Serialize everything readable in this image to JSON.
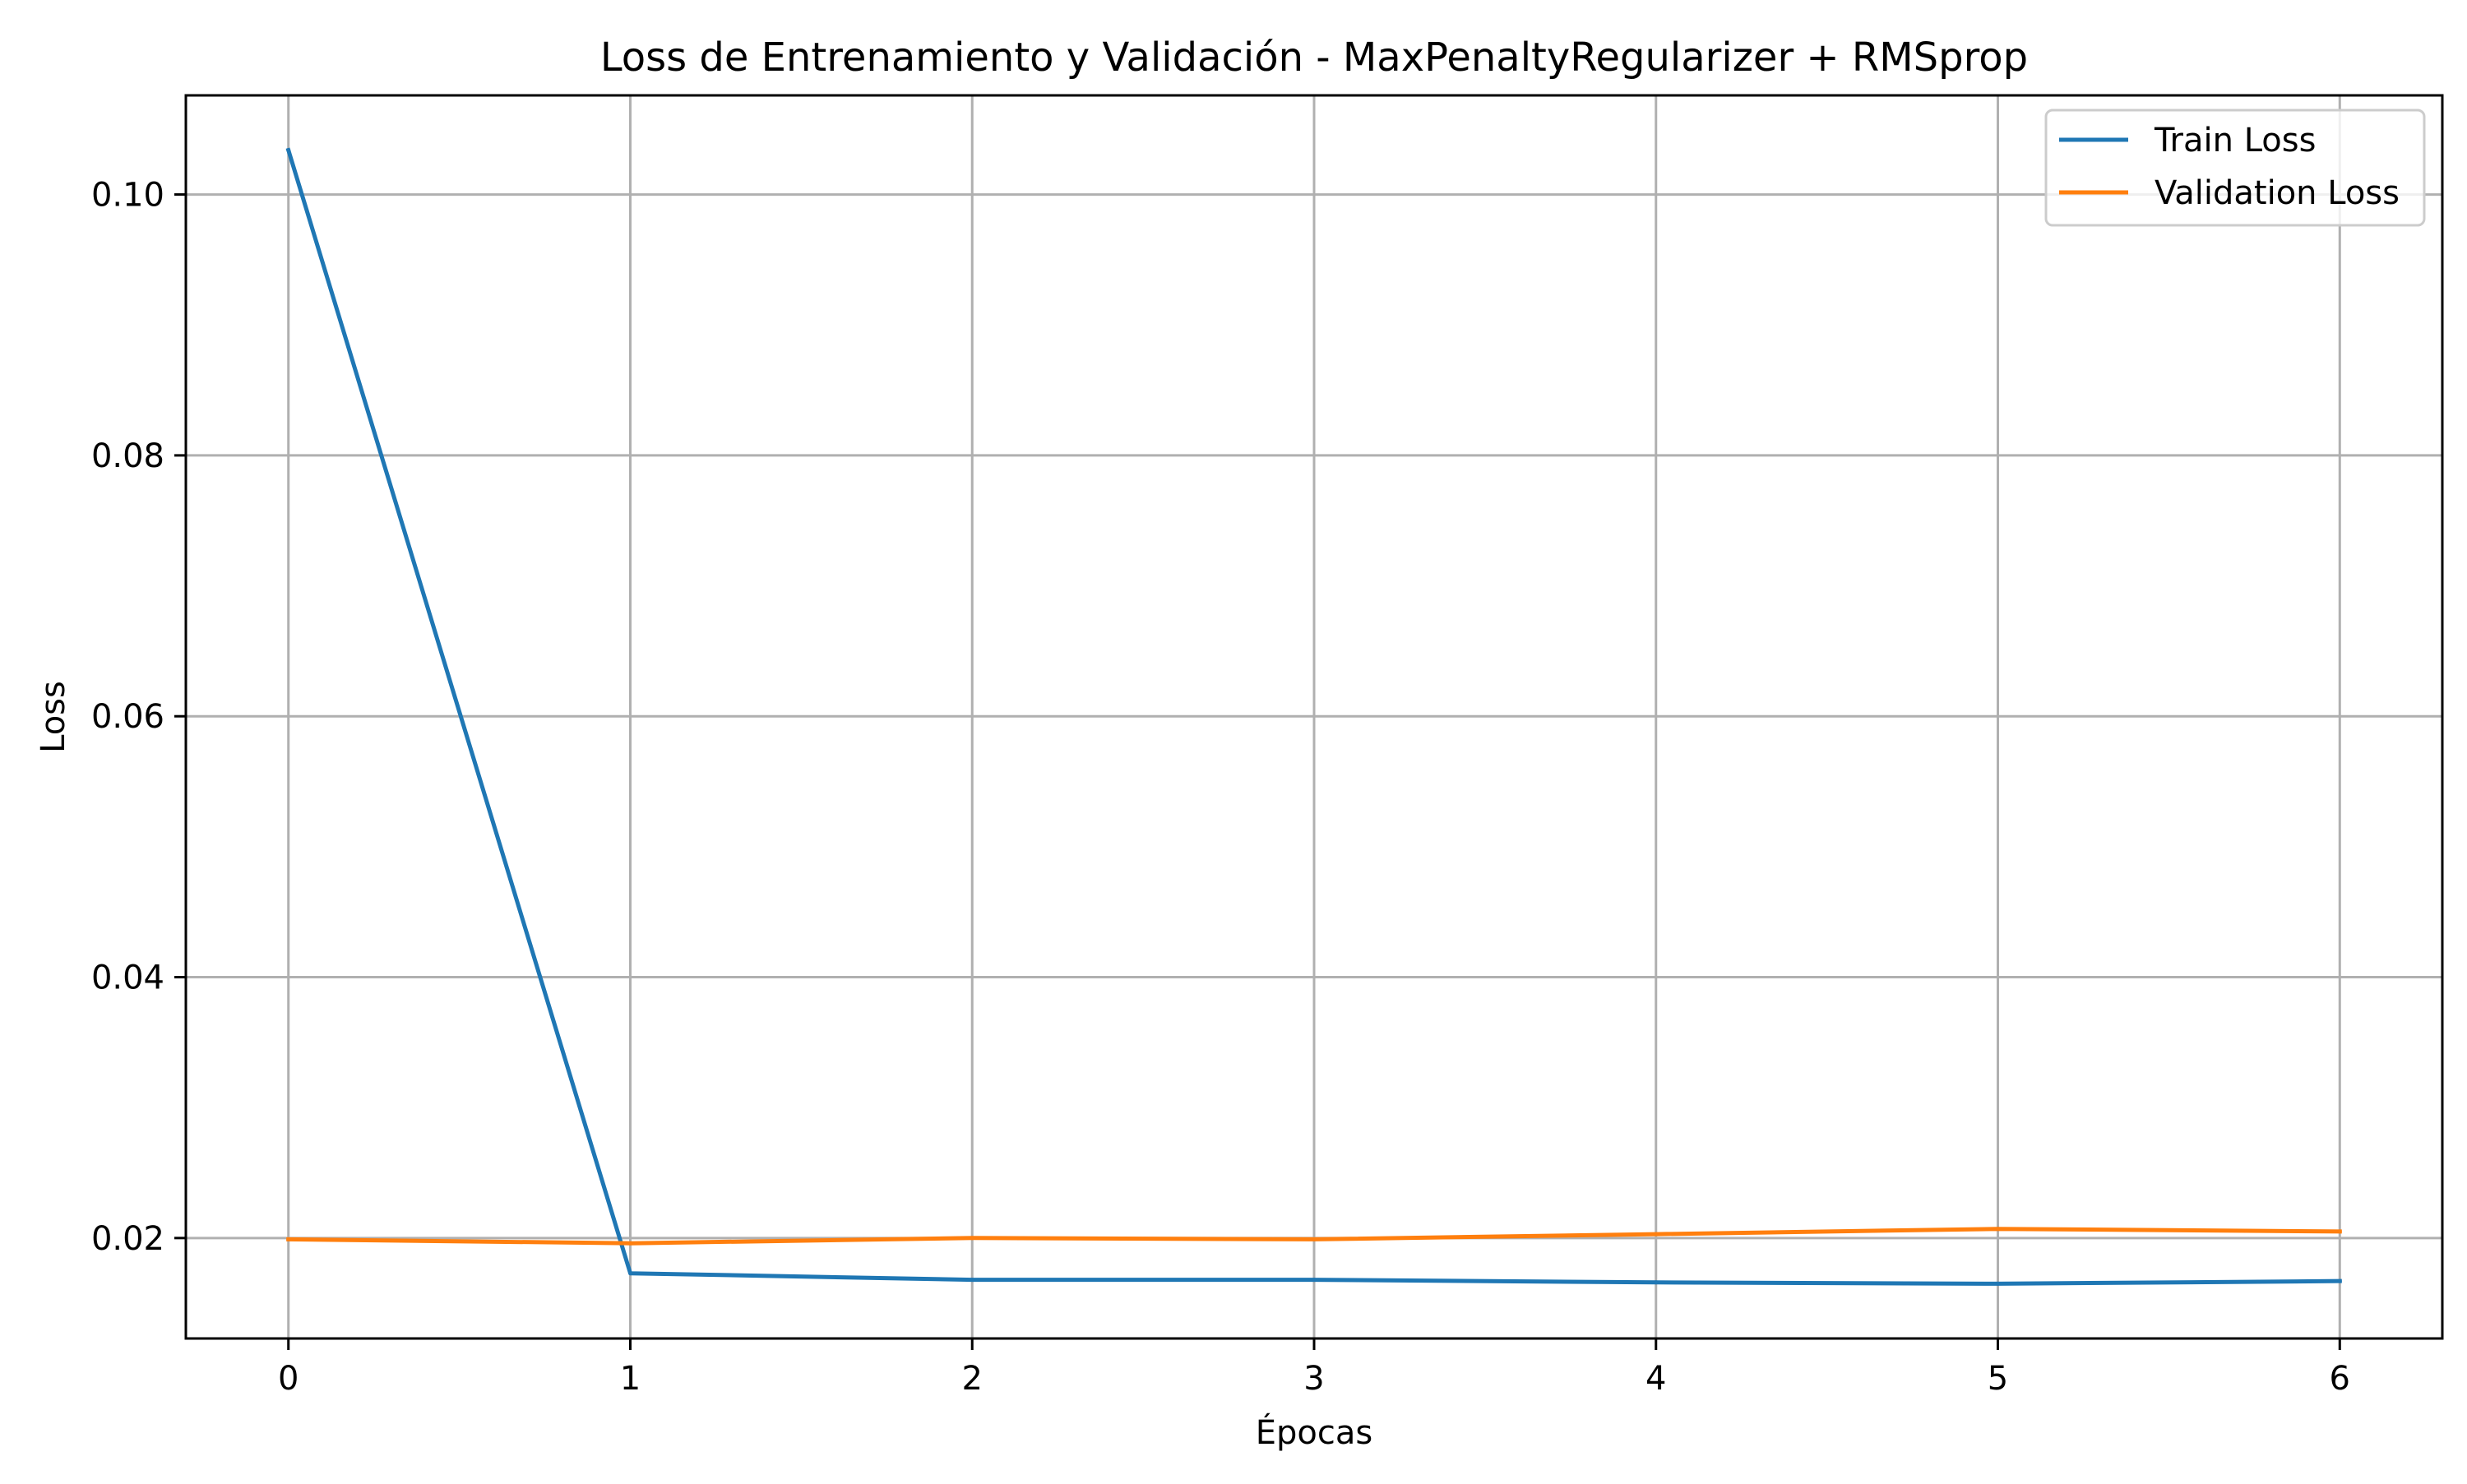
{
  "chart_data": {
    "type": "line",
    "title": "Loss de Entrenamiento y Validación - MaxPenaltyRegularizer + RMSprop",
    "xlabel": "Épocas",
    "ylabel": "Loss",
    "x": [
      0,
      1,
      2,
      3,
      4,
      5,
      6
    ],
    "xlim": [
      -0.3,
      6.3
    ],
    "ylim": [
      0.0123,
      0.1076
    ],
    "xticks": [
      "0",
      "1",
      "2",
      "3",
      "4",
      "5",
      "6"
    ],
    "yticks": [
      "0.02",
      "0.04",
      "0.06",
      "0.08",
      "0.10"
    ],
    "grid": true,
    "legend_position": "top-right",
    "series": [
      {
        "name": "Train Loss",
        "color": "#1f77b4",
        "values": [
          0.1034,
          0.0173,
          0.0168,
          0.0168,
          0.0166,
          0.0165,
          0.0167
        ]
      },
      {
        "name": "Validation Loss",
        "color": "#ff7f0e",
        "values": [
          0.0199,
          0.0196,
          0.02,
          0.0199,
          0.0203,
          0.0207,
          0.0205
        ]
      }
    ]
  }
}
